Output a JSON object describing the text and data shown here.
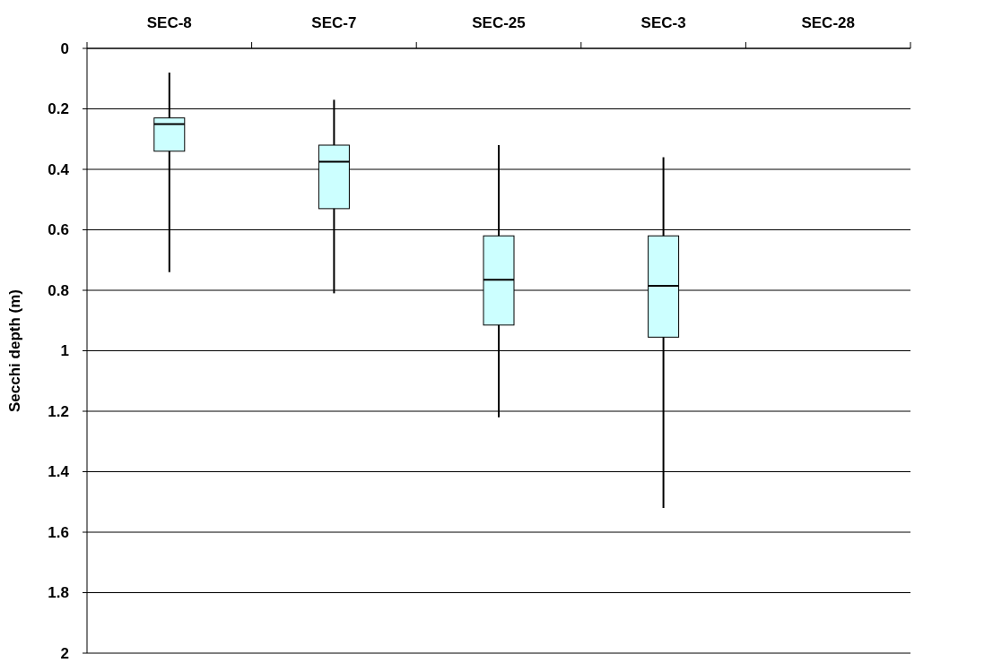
{
  "chart_data": {
    "type": "box",
    "ylabel": "Secchi depth (m)",
    "categories": [
      "SEC-8",
      "SEC-7",
      "SEC-25",
      "SEC-3",
      "SEC-28"
    ],
    "boxes": [
      {
        "low": 0.08,
        "q1": 0.23,
        "median": 0.25,
        "q3": 0.34,
        "high": 0.74
      },
      {
        "low": 0.17,
        "q1": 0.32,
        "median": 0.375,
        "q3": 0.53,
        "high": 0.81
      },
      {
        "low": 0.32,
        "q1": 0.62,
        "median": 0.765,
        "q3": 0.915,
        "high": 1.22
      },
      {
        "low": 0.36,
        "q1": 0.62,
        "median": 0.785,
        "q3": 0.955,
        "high": 1.52
      },
      null
    ],
    "color": "#ccffff",
    "ylim": [
      2,
      0
    ],
    "yticks": [
      0,
      0.2,
      0.4,
      0.6,
      0.8,
      1,
      1.2,
      1.4,
      1.6,
      1.8,
      2
    ],
    "grid": "y"
  }
}
